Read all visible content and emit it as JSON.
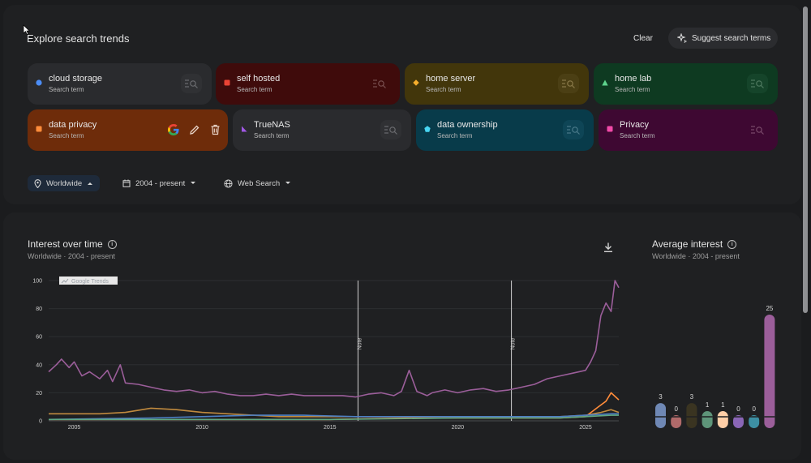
{
  "explore": {
    "title": "Explore search trends",
    "clear_label": "Clear",
    "suggest_label": "Suggest search terms"
  },
  "terms": [
    {
      "name": "cloud storage",
      "sub": "Search term",
      "color": "#4c8df6",
      "marker": "circle"
    },
    {
      "name": "self hosted",
      "sub": "Search term",
      "color": "#ea4335",
      "marker": "square"
    },
    {
      "name": "home server",
      "sub": "Search term",
      "color": "#f6ae2d",
      "marker": "diamond"
    },
    {
      "name": "home lab",
      "sub": "Search term",
      "color": "#5fd38d",
      "marker": "triangle"
    },
    {
      "name": "data privacy",
      "sub": "Search term",
      "color": "#ff8c3a",
      "marker": "square"
    },
    {
      "name": "TrueNAS",
      "sub": "Search term",
      "color": "#a259e6",
      "marker": "flag"
    },
    {
      "name": "data ownership",
      "sub": "Search term",
      "color": "#48d6f2",
      "marker": "pentagon"
    },
    {
      "name": "Privacy",
      "sub": "Search term",
      "color": "#f14aa8",
      "marker": "square"
    }
  ],
  "filters": {
    "location": "Worldwide",
    "date_range": "2004 - present",
    "search_type": "Web Search"
  },
  "interest": {
    "title": "Interest over time",
    "subtitle": "Worldwide · 2004 - present",
    "watermark": "Google Trends",
    "note_label": "Note"
  },
  "average": {
    "title": "Average interest",
    "subtitle": "Worldwide · 2004 - present"
  },
  "chart_data": {
    "type": "line",
    "title": "Interest over time",
    "x_range": [
      2004,
      2026.3
    ],
    "x_ticks": [
      2005,
      2010,
      2015,
      2020,
      2025
    ],
    "ylim": [
      0,
      100
    ],
    "y_ticks": [
      0,
      20,
      40,
      60,
      80,
      100
    ],
    "notes_at": [
      2016.1,
      2022.1
    ],
    "series": [
      {
        "name": "Privacy",
        "color": "#9b5e9a",
        "points": [
          [
            2004,
            35
          ],
          [
            2004.3,
            40
          ],
          [
            2004.5,
            44
          ],
          [
            2004.8,
            38
          ],
          [
            2005,
            42
          ],
          [
            2005.3,
            32
          ],
          [
            2005.6,
            35
          ],
          [
            2006,
            30
          ],
          [
            2006.3,
            36
          ],
          [
            2006.5,
            28
          ],
          [
            2006.8,
            40
          ],
          [
            2007,
            27
          ],
          [
            2007.5,
            26
          ],
          [
            2008,
            24
          ],
          [
            2008.5,
            22
          ],
          [
            2009,
            21
          ],
          [
            2009.5,
            22
          ],
          [
            2010,
            20
          ],
          [
            2010.5,
            21
          ],
          [
            2011,
            19
          ],
          [
            2011.5,
            18
          ],
          [
            2012,
            18
          ],
          [
            2012.5,
            19
          ],
          [
            2013,
            18
          ],
          [
            2013.5,
            19
          ],
          [
            2014,
            18
          ],
          [
            2014.5,
            18
          ],
          [
            2015,
            18
          ],
          [
            2015.5,
            18
          ],
          [
            2016,
            17
          ],
          [
            2016.5,
            19
          ],
          [
            2017,
            20
          ],
          [
            2017.5,
            18
          ],
          [
            2017.8,
            21
          ],
          [
            2018.1,
            36
          ],
          [
            2018.4,
            21
          ],
          [
            2018.8,
            18
          ],
          [
            2019,
            20
          ],
          [
            2019.5,
            22
          ],
          [
            2020,
            20
          ],
          [
            2020.5,
            22
          ],
          [
            2021,
            23
          ],
          [
            2021.5,
            21
          ],
          [
            2022,
            22
          ],
          [
            2022.5,
            24
          ],
          [
            2023,
            26
          ],
          [
            2023.5,
            30
          ],
          [
            2024,
            32
          ],
          [
            2024.5,
            34
          ],
          [
            2025,
            36
          ],
          [
            2025.2,
            42
          ],
          [
            2025.4,
            50
          ],
          [
            2025.6,
            75
          ],
          [
            2025.8,
            84
          ],
          [
            2026,
            78
          ],
          [
            2026.15,
            100
          ],
          [
            2026.3,
            95
          ]
        ]
      },
      {
        "name": "home server",
        "color": "#c08a3e",
        "points": [
          [
            2004,
            5
          ],
          [
            2005,
            5
          ],
          [
            2006,
            5
          ],
          [
            2007,
            6
          ],
          [
            2008,
            9
          ],
          [
            2009,
            8
          ],
          [
            2010,
            6
          ],
          [
            2011,
            5
          ],
          [
            2012,
            4
          ],
          [
            2013,
            3
          ],
          [
            2014,
            3
          ],
          [
            2015,
            3
          ],
          [
            2016,
            3
          ],
          [
            2017,
            3
          ],
          [
            2018,
            3
          ],
          [
            2019,
            3
          ],
          [
            2020,
            3
          ],
          [
            2021,
            3
          ],
          [
            2022,
            3
          ],
          [
            2023,
            3
          ],
          [
            2024,
            3
          ],
          [
            2025,
            4
          ],
          [
            2025.6,
            6
          ],
          [
            2026,
            8
          ],
          [
            2026.3,
            6
          ]
        ]
      },
      {
        "name": "data privacy",
        "color": "#ff8c3a",
        "points": [
          [
            2004,
            1
          ],
          [
            2010,
            1
          ],
          [
            2015,
            1
          ],
          [
            2018,
            2
          ],
          [
            2020,
            2
          ],
          [
            2022,
            2
          ],
          [
            2024,
            2
          ],
          [
            2025,
            3
          ],
          [
            2025.5,
            10
          ],
          [
            2025.8,
            14
          ],
          [
            2026,
            20
          ],
          [
            2026.3,
            15
          ]
        ]
      },
      {
        "name": "cloud storage",
        "color": "#4c7fc4",
        "points": [
          [
            2004,
            1
          ],
          [
            2008,
            2
          ],
          [
            2010,
            3
          ],
          [
            2012,
            4
          ],
          [
            2014,
            4
          ],
          [
            2016,
            3
          ],
          [
            2018,
            3
          ],
          [
            2020,
            3
          ],
          [
            2022,
            3
          ],
          [
            2024,
            3
          ],
          [
            2025,
            4
          ],
          [
            2026,
            5
          ],
          [
            2026.3,
            5
          ]
        ]
      },
      {
        "name": "home lab",
        "color": "#5fa882",
        "points": [
          [
            2004,
            1
          ],
          [
            2010,
            1
          ],
          [
            2015,
            1
          ],
          [
            2020,
            2
          ],
          [
            2024,
            2
          ],
          [
            2025,
            3
          ],
          [
            2026,
            4
          ],
          [
            2026.3,
            4
          ]
        ]
      }
    ],
    "average": {
      "type": "bar",
      "categories": [
        "cloud storage",
        "self hosted",
        "home server",
        "home lab",
        "data privacy",
        "TrueNAS",
        "data ownership",
        "Privacy"
      ],
      "values": [
        3,
        0,
        3,
        1,
        1,
        0,
        0,
        25
      ],
      "colors": [
        "#6f88b5",
        "#b06a6a",
        "#3a3421",
        "#5e957a",
        "#ffcfa8",
        "#8a66b6",
        "#3d8fa3",
        "#9b5e9a"
      ]
    }
  }
}
